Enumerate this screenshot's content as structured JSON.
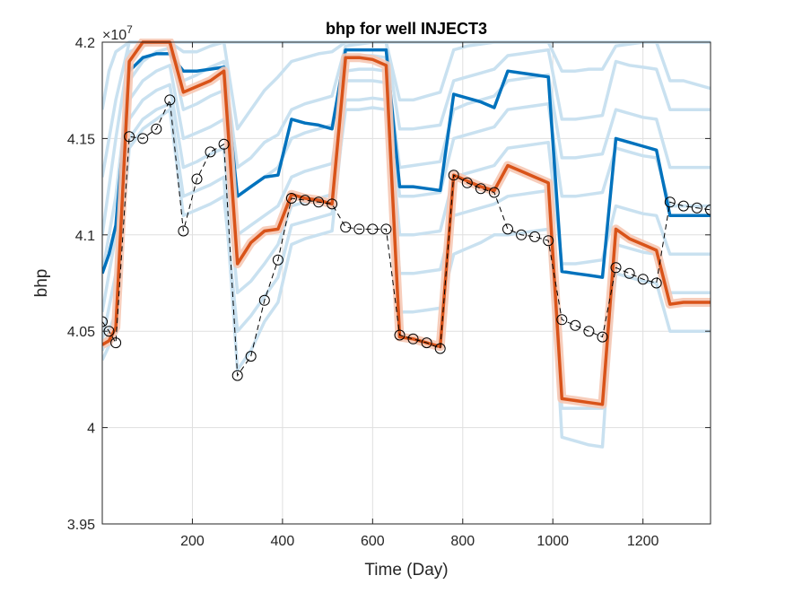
{
  "chart_data": {
    "type": "line",
    "title": "bhp for well INJECT3",
    "xlabel": "Time (Day)",
    "ylabel": "bhp",
    "xlim": [
      0,
      1350
    ],
    "ylim": [
      39500000,
      42000000
    ],
    "y_exponent_label": "×10",
    "y_exponent_power": "7",
    "x_ticks": [
      200,
      400,
      600,
      800,
      1000,
      1200
    ],
    "x_tick_labels": [
      "200",
      "400",
      "600",
      "800",
      "1000",
      "1200"
    ],
    "y_ticks": [
      39500000,
      40000000,
      40500000,
      41000000,
      41500000,
      42000000
    ],
    "y_tick_labels": [
      "3.95",
      "4",
      "4.05",
      "4.1",
      "4.15",
      "4.2"
    ],
    "grid": true,
    "colors": {
      "ensemble": "#c9e1f0",
      "prior_mean": "#0072bd",
      "posterior_band": "#f6c8b4",
      "posterior_mean": "#d95319",
      "observed": "#000000"
    },
    "series": [
      {
        "style": "ensemble",
        "x": [
          0,
          15,
          30,
          60,
          90,
          120,
          150,
          180,
          210,
          240,
          270,
          300,
          330,
          360,
          390,
          420,
          450,
          480,
          510,
          540,
          570,
          600,
          630,
          660,
          690,
          720,
          750,
          780,
          810,
          840,
          870,
          900,
          930,
          960,
          990,
          1020,
          1050,
          1080,
          1110,
          1140,
          1170,
          1200,
          1230,
          1260,
          1290,
          1320,
          1350
        ],
        "y": [
          41650000,
          41850000,
          41950000,
          42000000,
          42000000,
          42000000,
          42000000,
          42000000,
          42000000,
          42000000,
          42000000,
          42000000,
          42000000,
          42000000,
          42000000,
          42000000,
          42000000,
          42000000,
          42000000,
          42000000,
          42000000,
          42000000,
          42000000,
          42000000,
          42000000,
          42000000,
          42000000,
          42000000,
          42000000,
          42000000,
          42000000,
          42000000,
          42000000,
          42000000,
          42000000,
          42000000,
          42000000,
          42000000,
          42000000,
          42000000,
          42000000,
          42000000,
          42000000,
          42000000,
          42000000,
          42000000,
          42000000
        ]
      },
      {
        "style": "ensemble",
        "x": [
          0,
          30,
          60,
          90,
          120,
          150,
          180,
          210,
          240,
          270,
          300,
          330,
          360,
          390,
          420,
          450,
          480,
          510,
          540,
          570,
          600,
          630,
          660,
          690,
          720,
          750,
          780,
          810,
          840,
          870,
          900,
          930,
          960,
          990,
          1020,
          1050,
          1080,
          1110,
          1140,
          1170,
          1200,
          1230,
          1260,
          1290,
          1320,
          1350
        ],
        "y": [
          41300000,
          41700000,
          42000000,
          42000000,
          42000000,
          42000000,
          41950000,
          41950000,
          41980000,
          42000000,
          41550000,
          41650000,
          41750000,
          41820000,
          41900000,
          41920000,
          41940000,
          41950000,
          42000000,
          42000000,
          42000000,
          42000000,
          41700000,
          41700000,
          41720000,
          41740000,
          41960000,
          41980000,
          41990000,
          42000000,
          42000000,
          42000000,
          42000000,
          42000000,
          41850000,
          41850000,
          41860000,
          41860000,
          41980000,
          41990000,
          42000000,
          42000000,
          41800000,
          41800000,
          41780000,
          41760000
        ]
      },
      {
        "style": "ensemble",
        "x": [
          0,
          30,
          60,
          90,
          120,
          150,
          180,
          210,
          240,
          270,
          300,
          330,
          360,
          390,
          420,
          450,
          480,
          510,
          540,
          570,
          600,
          630,
          660,
          690,
          720,
          750,
          780,
          810,
          840,
          870,
          900,
          930,
          960,
          990,
          1020,
          1050,
          1080,
          1110,
          1140,
          1170,
          1200,
          1230,
          1260,
          1290,
          1320,
          1350
        ],
        "y": [
          41000000,
          41500000,
          41950000,
          41980000,
          42000000,
          42000000,
          41800000,
          41830000,
          41870000,
          41900000,
          41350000,
          41400000,
          41480000,
          41520000,
          41650000,
          41680000,
          41700000,
          41720000,
          41980000,
          41990000,
          42000000,
          42000000,
          41550000,
          41550000,
          41560000,
          41570000,
          41800000,
          41820000,
          41840000,
          41860000,
          41930000,
          41940000,
          41950000,
          41960000,
          41600000,
          41600000,
          41610000,
          41620000,
          41900000,
          41880000,
          41870000,
          41860000,
          41650000,
          41650000,
          41650000,
          41650000
        ]
      },
      {
        "style": "ensemble",
        "x": [
          0,
          30,
          60,
          90,
          120,
          150,
          180,
          210,
          240,
          270,
          300,
          330,
          360,
          390,
          420,
          450,
          480,
          510,
          540,
          570,
          600,
          630,
          660,
          690,
          720,
          750,
          780,
          810,
          840,
          870,
          900,
          930,
          960,
          990,
          1020,
          1050,
          1080,
          1110,
          1140,
          1170,
          1200,
          1230,
          1260,
          1290,
          1320,
          1350
        ],
        "y": [
          40800000,
          41200000,
          41800000,
          41900000,
          41950000,
          41970000,
          41650000,
          41680000,
          41720000,
          41750000,
          41200000,
          41250000,
          41300000,
          41350000,
          41500000,
          41530000,
          41550000,
          41570000,
          41920000,
          41930000,
          41930000,
          41920000,
          41350000,
          41360000,
          41370000,
          41380000,
          41650000,
          41680000,
          41700000,
          41720000,
          41800000,
          41810000,
          41820000,
          41830000,
          41400000,
          41400000,
          41410000,
          41420000,
          41650000,
          41630000,
          41610000,
          41600000,
          41350000,
          41350000,
          41350000,
          41350000
        ]
      },
      {
        "style": "ensemble",
        "x": [
          0,
          30,
          60,
          90,
          120,
          150,
          180,
          210,
          240,
          270,
          300,
          330,
          360,
          390,
          420,
          450,
          480,
          510,
          540,
          570,
          600,
          630,
          660,
          690,
          720,
          750,
          780,
          810,
          840,
          870,
          900,
          930,
          960,
          990,
          1020,
          1050,
          1080,
          1110,
          1140,
          1170,
          1200,
          1230,
          1260,
          1290,
          1320,
          1350
        ],
        "y": [
          40600000,
          41000000,
          41700000,
          41800000,
          41850000,
          41880000,
          41500000,
          41530000,
          41560000,
          41600000,
          41000000,
          41050000,
          41100000,
          41150000,
          41300000,
          41330000,
          41350000,
          41370000,
          41850000,
          41860000,
          41860000,
          41850000,
          41200000,
          41200000,
          41210000,
          41220000,
          41500000,
          41520000,
          41540000,
          41560000,
          41650000,
          41660000,
          41670000,
          41680000,
          41200000,
          41200000,
          41210000,
          41220000,
          41450000,
          41430000,
          41410000,
          41400000,
          41150000,
          41150000,
          41150000,
          41150000
        ]
      },
      {
        "style": "ensemble",
        "x": [
          0,
          30,
          60,
          90,
          120,
          150,
          180,
          210,
          240,
          270,
          300,
          330,
          360,
          390,
          420,
          450,
          480,
          510,
          540,
          570,
          600,
          630,
          660,
          690,
          720,
          750,
          780,
          810,
          840,
          870,
          900,
          930,
          960,
          990,
          1020,
          1050,
          1080,
          1110,
          1140,
          1170,
          1200,
          1230,
          1260,
          1290,
          1320,
          1350
        ],
        "y": [
          40450000,
          40800000,
          41600000,
          41700000,
          41750000,
          41780000,
          41350000,
          41380000,
          41420000,
          41450000,
          40700000,
          40760000,
          40850000,
          40950000,
          41150000,
          41170000,
          41190000,
          41210000,
          41800000,
          41800000,
          41800000,
          41790000,
          41000000,
          41000000,
          41010000,
          41020000,
          41300000,
          41320000,
          41340000,
          41360000,
          41450000,
          41460000,
          41470000,
          41480000,
          40850000,
          40850000,
          40860000,
          40870000,
          41150000,
          41130000,
          41110000,
          41100000,
          40900000,
          40900000,
          40900000,
          40900000
        ]
      },
      {
        "style": "ensemble",
        "x": [
          0,
          30,
          60,
          90,
          120,
          150,
          180,
          210,
          240,
          270,
          300,
          330,
          360,
          390,
          420,
          450,
          480,
          510,
          540,
          570,
          600,
          630,
          660,
          690,
          720,
          750,
          780,
          810,
          840,
          870,
          900,
          930,
          960,
          990,
          1020,
          1050,
          1080,
          1110,
          1140,
          1170,
          1200,
          1230,
          1260,
          1290,
          1320,
          1350
        ],
        "y": [
          40350000,
          40500000,
          41500000,
          41600000,
          41650000,
          41680000,
          41200000,
          41230000,
          41260000,
          41300000,
          40300000,
          40400000,
          40550000,
          40650000,
          40950000,
          40980000,
          41000000,
          41020000,
          41700000,
          41700000,
          41710000,
          41700000,
          40600000,
          40600000,
          40610000,
          40620000,
          40900000,
          40930000,
          40960000,
          41000000,
          41000000,
          41010000,
          41020000,
          41030000,
          40100000,
          40100000,
          40100000,
          40100000,
          40800000,
          40780000,
          40760000,
          40750000,
          40500000,
          40500000,
          40500000,
          40500000
        ]
      },
      {
        "style": "ensemble",
        "x": [
          0,
          30,
          60,
          90,
          120,
          150,
          180,
          210,
          240,
          270,
          300,
          330,
          360,
          390,
          420,
          450,
          480,
          510,
          540,
          570,
          600,
          630,
          660,
          690,
          720,
          750,
          780,
          810,
          840,
          870,
          900,
          930,
          960,
          990,
          1020,
          1050,
          1080,
          1110,
          1140,
          1170,
          1200,
          1230,
          1260,
          1290,
          1320,
          1350
        ],
        "y": [
          40400000,
          40600000,
          41450000,
          41550000,
          41600000,
          41650000,
          41100000,
          41130000,
          41160000,
          41200000,
          40500000,
          40580000,
          40680000,
          40780000,
          41050000,
          41070000,
          41090000,
          41110000,
          41650000,
          41650000,
          41660000,
          41650000,
          40800000,
          40800000,
          40810000,
          40820000,
          41100000,
          41120000,
          41140000,
          41160000,
          41200000,
          41210000,
          41220000,
          41230000,
          39950000,
          39930000,
          39910000,
          39900000,
          40950000,
          40930000,
          40910000,
          40900000,
          40700000,
          40700000,
          40700000,
          40700000
        ]
      },
      {
        "style": "prior_mean",
        "x": [
          0,
          15,
          30,
          60,
          90,
          120,
          150,
          180,
          210,
          240,
          270,
          300,
          330,
          360,
          390,
          420,
          450,
          480,
          510,
          540,
          570,
          600,
          630,
          660,
          690,
          720,
          750,
          780,
          810,
          840,
          870,
          900,
          930,
          960,
          990,
          1020,
          1050,
          1080,
          1110,
          1140,
          1170,
          1200,
          1230,
          1260,
          1290,
          1320,
          1350
        ],
        "y": [
          40800000,
          40900000,
          41050000,
          41850000,
          41920000,
          41940000,
          41940000,
          41850000,
          41850000,
          41860000,
          41870000,
          41200000,
          41250000,
          41300000,
          41310000,
          41600000,
          41580000,
          41570000,
          41550000,
          41960000,
          41960000,
          41960000,
          41960000,
          41250000,
          41250000,
          41240000,
          41230000,
          41730000,
          41710000,
          41690000,
          41660000,
          41850000,
          41840000,
          41830000,
          41820000,
          40810000,
          40800000,
          40790000,
          40780000,
          41500000,
          41480000,
          41460000,
          41440000,
          41100000,
          41100000,
          41100000,
          41100000
        ]
      },
      {
        "style": "posterior_mean",
        "x": [
          0,
          15,
          30,
          60,
          90,
          120,
          150,
          180,
          210,
          240,
          270,
          300,
          330,
          360,
          390,
          420,
          450,
          480,
          510,
          540,
          570,
          600,
          630,
          660,
          690,
          720,
          750,
          780,
          810,
          840,
          870,
          900,
          930,
          960,
          990,
          1020,
          1050,
          1080,
          1110,
          1140,
          1170,
          1200,
          1230,
          1260,
          1290,
          1320,
          1350
        ],
        "y": [
          40430000,
          40450000,
          40520000,
          41900000,
          42000000,
          42000000,
          42000000,
          41740000,
          41770000,
          41800000,
          41850000,
          40850000,
          40960000,
          41020000,
          41030000,
          41210000,
          41190000,
          41180000,
          41160000,
          41920000,
          41920000,
          41910000,
          41880000,
          40470000,
          40460000,
          40440000,
          40420000,
          41310000,
          41280000,
          41250000,
          41230000,
          41360000,
          41330000,
          41300000,
          41270000,
          40150000,
          40140000,
          40130000,
          40120000,
          41030000,
          40980000,
          40950000,
          40920000,
          40640000,
          40650000,
          40650000,
          40650000
        ]
      },
      {
        "style": "observed",
        "x": [
          0,
          15,
          30,
          60,
          90,
          120,
          150,
          180,
          210,
          240,
          270,
          300,
          330,
          360,
          390,
          420,
          450,
          480,
          510,
          540,
          570,
          600,
          630,
          660,
          690,
          720,
          750,
          780,
          810,
          840,
          870,
          900,
          930,
          960,
          990,
          1020,
          1050,
          1080,
          1110,
          1140,
          1170,
          1200,
          1230,
          1260,
          1290,
          1320,
          1350
        ],
        "y": [
          40550000,
          40500000,
          40440000,
          41510000,
          41500000,
          41550000,
          41700000,
          41020000,
          41290000,
          41430000,
          41470000,
          40270000,
          40370000,
          40660000,
          40870000,
          41190000,
          41180000,
          41170000,
          41160000,
          41040000,
          41030000,
          41030000,
          41030000,
          40480000,
          40460000,
          40440000,
          40410000,
          41310000,
          41270000,
          41240000,
          41220000,
          41030000,
          41000000,
          40990000,
          40970000,
          40560000,
          40530000,
          40500000,
          40470000,
          40830000,
          40800000,
          40770000,
          40750000,
          41170000,
          41150000,
          41140000,
          41130000
        ]
      }
    ]
  }
}
